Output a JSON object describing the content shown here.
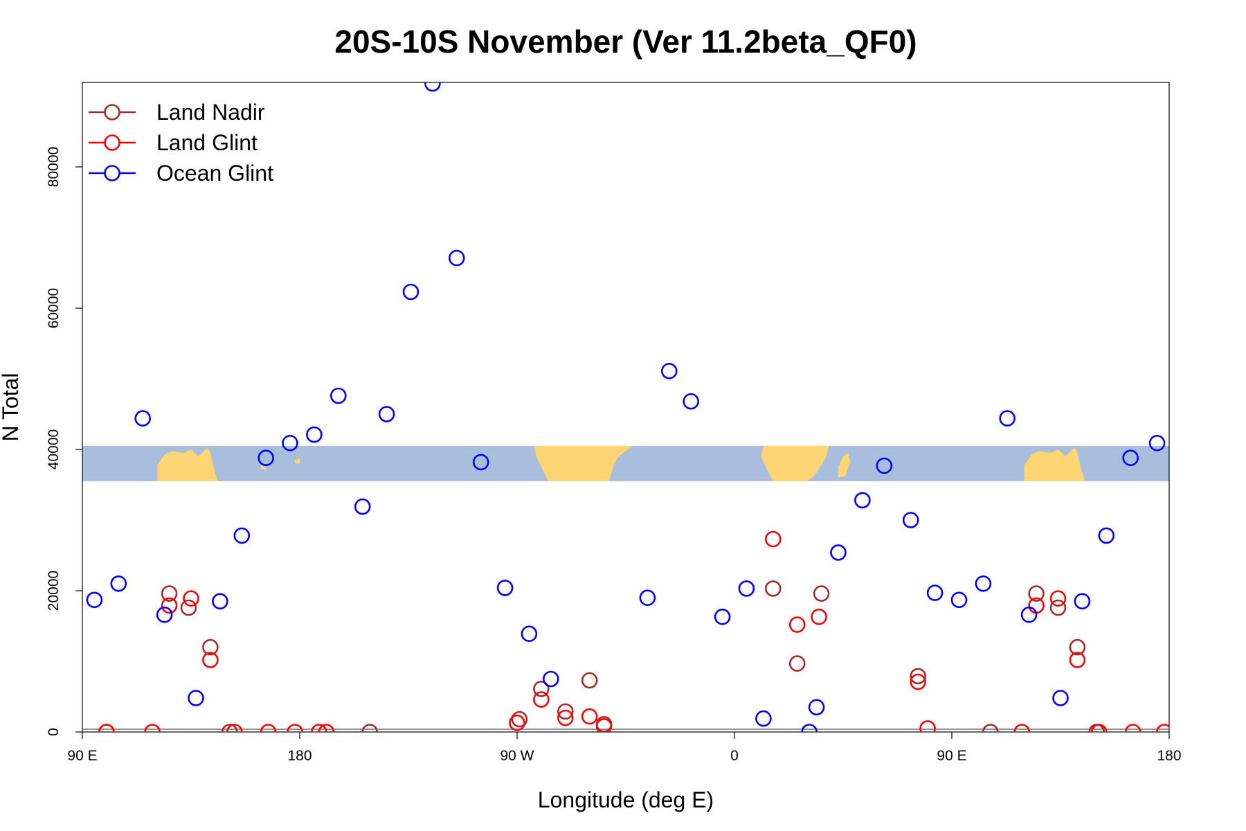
{
  "chart_data": {
    "type": "scatter",
    "title": "20S-10S November (Ver 11.2beta_QF0)",
    "xlabel": "Longitude (deg E)",
    "ylabel": "N Total",
    "xlim": [
      90,
      540
    ],
    "ylim": [
      0,
      92000
    ],
    "x_ticks": [
      {
        "value": 90,
        "label": "90 E"
      },
      {
        "value": 180,
        "label": "180"
      },
      {
        "value": 270,
        "label": "90 W"
      },
      {
        "value": 360,
        "label": "0"
      },
      {
        "value": 450,
        "label": "90 E"
      },
      {
        "value": 540,
        "label": "180"
      }
    ],
    "y_ticks": [
      0,
      20000,
      40000,
      60000,
      80000
    ],
    "grid": false,
    "legend_position": "top-left",
    "map_band": {
      "ymin": 35500,
      "ymax": 40500,
      "ocean_color": "#a8bedc",
      "land_color": "#fdd673"
    },
    "series": [
      {
        "name": "Land Nadir",
        "color": "#a52a2a",
        "points": [
          [
            100,
            0
          ],
          [
            126,
            19600
          ],
          [
            134,
            17600
          ],
          [
            143,
            12000
          ],
          [
            151,
            0
          ],
          [
            209,
            0
          ],
          [
            271,
            1800
          ],
          [
            280,
            6100
          ],
          [
            290,
            2900
          ],
          [
            300,
            7300
          ],
          [
            306,
            1100
          ],
          [
            376,
            20300
          ],
          [
            386,
            9700
          ],
          [
            396,
            19600
          ],
          [
            436,
            7900
          ],
          [
            466,
            0
          ],
          [
            485,
            19600
          ],
          [
            494,
            17600
          ],
          [
            502,
            12000
          ],
          [
            510,
            0
          ]
        ]
      },
      {
        "name": "Land Glint",
        "color": "#ff0000",
        "points": [
          [
            100,
            0
          ],
          [
            119,
            0
          ],
          [
            126,
            17900
          ],
          [
            135,
            18900
          ],
          [
            143,
            10200
          ],
          [
            153,
            0
          ],
          [
            167,
            0
          ],
          [
            178,
            0
          ],
          [
            188,
            0
          ],
          [
            191,
            0
          ],
          [
            270,
            1300
          ],
          [
            280,
            4600
          ],
          [
            290,
            2000
          ],
          [
            300,
            2200
          ],
          [
            306,
            800
          ],
          [
            376,
            27300
          ],
          [
            386,
            15200
          ],
          [
            395,
            16300
          ],
          [
            436,
            7100
          ],
          [
            440,
            500
          ],
          [
            479,
            0
          ],
          [
            485,
            17900
          ],
          [
            494,
            18900
          ],
          [
            502,
            10200
          ],
          [
            511,
            0
          ],
          [
            525,
            0
          ],
          [
            538,
            0
          ]
        ]
      },
      {
        "name": "Ocean Glint",
        "color": "#0000ff",
        "points": [
          [
            95,
            18700
          ],
          [
            105,
            21000
          ],
          [
            115,
            44400
          ],
          [
            124,
            16600
          ],
          [
            137,
            4800
          ],
          [
            147,
            18500
          ],
          [
            156,
            27800
          ],
          [
            166,
            38800
          ],
          [
            176,
            40900
          ],
          [
            186,
            42100
          ],
          [
            196,
            47600
          ],
          [
            206,
            31900
          ],
          [
            216,
            45000
          ],
          [
            226,
            62300
          ],
          [
            235,
            91800
          ],
          [
            245,
            67100
          ],
          [
            255,
            38200
          ],
          [
            265,
            20400
          ],
          [
            275,
            13900
          ],
          [
            284,
            7500
          ],
          [
            324,
            19000
          ],
          [
            333,
            51100
          ],
          [
            342,
            46800
          ],
          [
            355,
            16300
          ],
          [
            365,
            20300
          ],
          [
            372,
            1900
          ],
          [
            391,
            0
          ],
          [
            394,
            3500
          ],
          [
            403,
            25400
          ],
          [
            413,
            32800
          ],
          [
            422,
            37700
          ],
          [
            433,
            30000
          ],
          [
            443,
            19700
          ],
          [
            453,
            18700
          ],
          [
            463,
            21000
          ],
          [
            473,
            44400
          ],
          [
            482,
            16600
          ],
          [
            495,
            4800
          ],
          [
            504,
            18500
          ],
          [
            514,
            27800
          ],
          [
            524,
            38800
          ],
          [
            535,
            40900
          ]
        ]
      }
    ]
  }
}
